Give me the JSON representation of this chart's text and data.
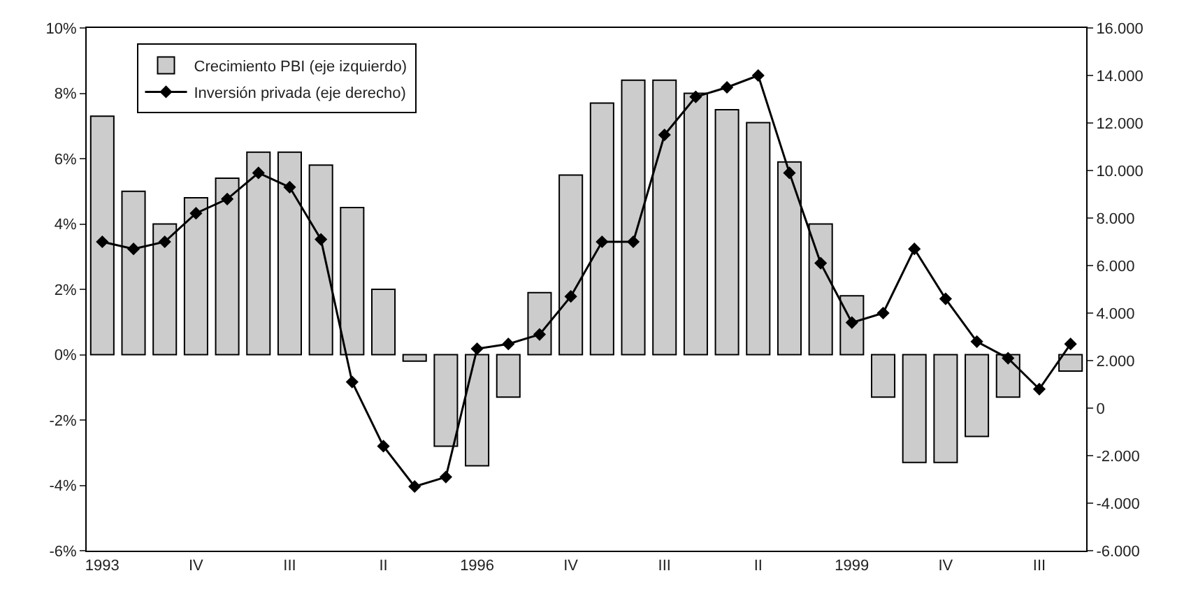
{
  "chart_data": {
    "type": "bar",
    "categories": [
      "1993",
      null,
      null,
      "IV",
      null,
      null,
      "III",
      null,
      null,
      "II",
      null,
      null,
      "1996",
      null,
      null,
      "IV",
      null,
      null,
      "III",
      null,
      null,
      "II",
      null,
      null,
      "1999",
      null,
      null,
      "IV",
      null,
      null,
      "III",
      null
    ],
    "series": [
      {
        "name": "Crecimiento PBI (eje izquierdo)",
        "color": "#cccccc",
        "values": [
          7.3,
          5.0,
          4.0,
          4.8,
          5.4,
          6.2,
          6.2,
          5.8,
          4.5,
          2.0,
          -0.2,
          -2.8,
          -3.4,
          -1.3,
          1.9,
          5.5,
          7.7,
          8.4,
          8.4,
          8.0,
          7.5,
          7.1,
          5.9,
          4.0,
          1.8,
          -1.3,
          -3.3,
          -3.3,
          -2.5,
          -1.3,
          null,
          -0.5
        ]
      },
      {
        "name": "Inversión privada (eje derecho)",
        "type": "line",
        "axis": "y2",
        "color": "#000000",
        "values": [
          7000,
          6700,
          7000,
          8200,
          8800,
          9900,
          9300,
          7100,
          1100,
          -1600,
          -3300,
          -2900,
          2500,
          2700,
          3100,
          4700,
          7000,
          7000,
          11500,
          13100,
          13500,
          14000,
          9900,
          6100,
          3600,
          4000,
          6700,
          4600,
          2800,
          2100,
          800,
          2700
        ]
      }
    ],
    "ylim": [
      -6,
      10
    ],
    "yticks": [
      {
        "value": -6,
        "label": "-6%"
      },
      {
        "value": -4,
        "label": "-4%"
      },
      {
        "value": -2,
        "label": "-2%"
      },
      {
        "value": 0,
        "label": "0%"
      },
      {
        "value": 2,
        "label": "2%"
      },
      {
        "value": 4,
        "label": "4%"
      },
      {
        "value": 6,
        "label": "6%"
      },
      {
        "value": 8,
        "label": "8%"
      },
      {
        "value": 10,
        "label": "10%"
      }
    ],
    "y2lim": [
      -6000,
      16000
    ],
    "y2ticks": [
      {
        "value": -6000,
        "label": "-6.000"
      },
      {
        "value": -4000,
        "label": "-4.000"
      },
      {
        "value": -2000,
        "label": "-2.000"
      },
      0,
      {
        "value": 2000,
        "label": "2.000"
      },
      {
        "value": 4000,
        "label": "4.000"
      },
      {
        "value": 6000,
        "label": "6.000"
      },
      {
        "value": 8000,
        "label": "8.000"
      },
      {
        "value": 10000,
        "label": "10.000"
      },
      {
        "value": 12000,
        "label": "12.000"
      },
      {
        "value": 14000,
        "label": "14.000"
      },
      {
        "value": 16000,
        "label": "16.000"
      }
    ],
    "legend": "top left",
    "marker": "diamond",
    "grid": false
  }
}
